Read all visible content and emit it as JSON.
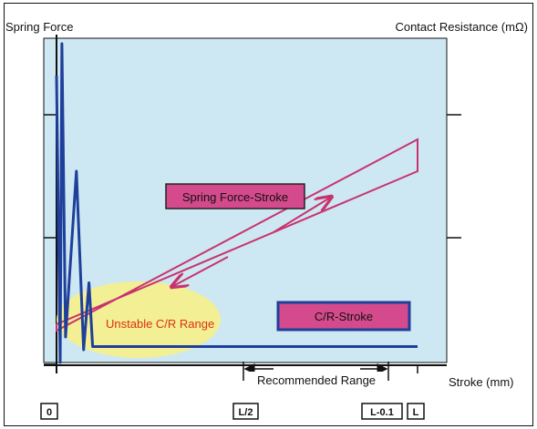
{
  "chart_data": {
    "type": "line",
    "title": "",
    "y_left_label": "Spring Force",
    "y_right_label": "Contact Resistance (mΩ)",
    "x_label": "Stroke (mm)",
    "x_tick_labels": [
      "0",
      "L/2",
      "L-0.1",
      "L"
    ],
    "plot_background": "#cde8f2",
    "recommended_range_label": "Recommended Range",
    "unstable_label": "Unstable C/R Range",
    "unstable_color": "#e03010",
    "unstable_fill": "#f6f08a",
    "series": [
      {
        "name": "Spring Force-Stroke",
        "color": "#c8336e",
        "label_fill": "#d44a8c",
        "points": [
          [
            0.0,
            0.1
          ],
          [
            1.0,
            0.7
          ],
          [
            1.0,
            0.6
          ],
          [
            0.0,
            0.12
          ]
        ]
      },
      {
        "name": "C/R-Stroke",
        "color": "#1f3f9a",
        "label_fill": "#d44a8c",
        "points": [
          [
            0.0,
            0.9
          ],
          [
            0.01,
            0.0
          ],
          [
            0.015,
            1.0
          ],
          [
            0.025,
            0.08
          ],
          [
            0.055,
            0.6
          ],
          [
            0.075,
            0.04
          ],
          [
            0.09,
            0.25
          ],
          [
            0.1,
            0.05
          ],
          [
            1.0,
            0.05
          ]
        ]
      }
    ]
  }
}
